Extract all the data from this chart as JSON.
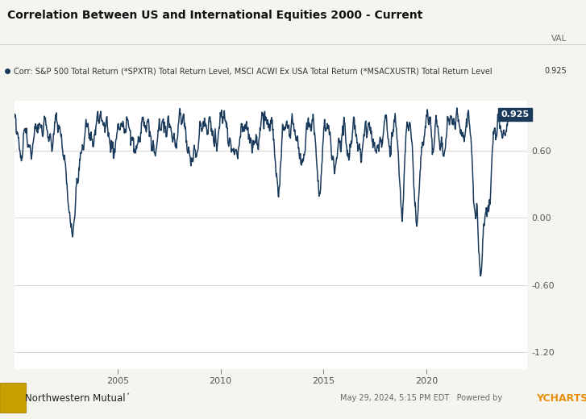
{
  "title": "Correlation Between US and International Equities 2000 - Current",
  "legend_label": "Corr: S&P 500 Total Return (*SPXTR) Total Return Level, MSCI ACWI Ex USA Total Return (*MSACXUSTR) Total Return Level",
  "val_label": "VAL",
  "current_val": "0.925",
  "ylabel_ticks": [
    0.6,
    0.0,
    -0.6,
    -1.2
  ],
  "xtick_labels": [
    "2005",
    "2010",
    "2015",
    "2020"
  ],
  "xtick_positions": [
    2005,
    2010,
    2015,
    2020
  ],
  "line_color": "#1a3a5c",
  "background_color": "#f5f5f0",
  "plot_bg_color": "#ffffff",
  "annotation_box_color": "#1a3a5c",
  "annotation_text_color": "#ffffff",
  "footer_date": "May 29, 2024, 5:15 PM EDT",
  "footer_powered": "Powered by",
  "footer_brand": "YCHARTS",
  "title_fontsize": 10,
  "legend_fontsize": 7,
  "tick_fontsize": 8,
  "line_width": 1.1,
  "ylim": [
    -1.35,
    1.05
  ],
  "xlim_start": 2000.0,
  "xlim_end": 2024.9
}
